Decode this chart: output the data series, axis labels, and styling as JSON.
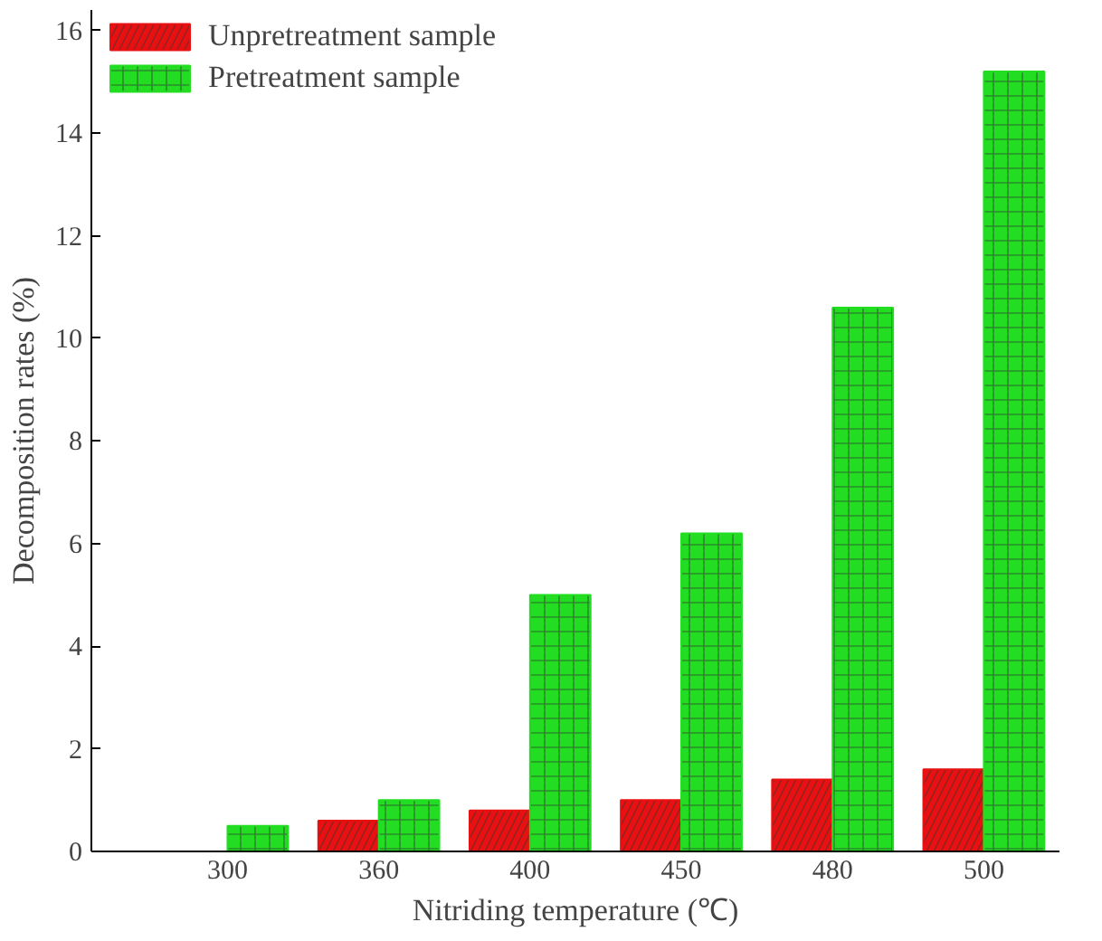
{
  "chart_data": {
    "type": "bar",
    "xlabel": "Nitriding temperature (℃)",
    "ylabel": "Decomposition rates (%)",
    "categories": [
      "300",
      "360",
      "400",
      "450",
      "480",
      "500"
    ],
    "series": [
      {
        "name": "Unpretreatment sample",
        "color": "#e81010",
        "values": [
          0,
          0.6,
          0.8,
          1.0,
          1.4,
          1.6
        ]
      },
      {
        "name": "Pretreatment sample",
        "color": "#22dd22",
        "values": [
          0.5,
          1.0,
          5.0,
          6.2,
          10.6,
          15.2
        ]
      }
    ],
    "ylim": [
      0,
      16.4
    ],
    "yticks": [
      0,
      2,
      4,
      6,
      8,
      10,
      12,
      14,
      16
    ],
    "grid": false,
    "legend": "top left"
  }
}
